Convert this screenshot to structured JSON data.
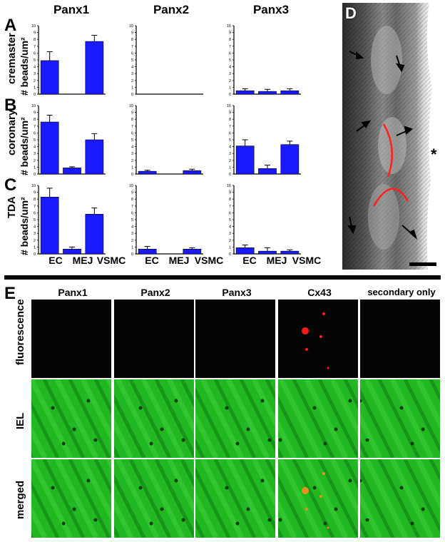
{
  "figure": {
    "panel_labels": {
      "A": "A",
      "B": "B",
      "C": "C",
      "D": "D",
      "E": "E"
    },
    "column_titles": [
      "Panx1",
      "Panx2",
      "Panx3"
    ],
    "row_labels": [
      "cremaster",
      "coronary",
      "TDA"
    ],
    "y_axis_label": "# beads/um²",
    "x_categories": [
      "EC",
      "MEJ",
      "VSMC"
    ],
    "scale_marker": "*"
  },
  "chart_data": [
    {
      "type": "bar",
      "row": "cremaster",
      "title": "Panx1",
      "categories": [
        "EC",
        "MEJ",
        "VSMC"
      ],
      "values": [
        4.9,
        0,
        7.7
      ],
      "errors": [
        1.3,
        0,
        0.9
      ],
      "ylim": [
        0,
        10
      ],
      "yticks": [
        0,
        1,
        2,
        3,
        4,
        5,
        6,
        7,
        8,
        9,
        10
      ],
      "color": "#1a1aff"
    },
    {
      "type": "bar",
      "row": "cremaster",
      "title": "Panx2",
      "categories": [
        "EC",
        "MEJ",
        "VSMC"
      ],
      "values": [
        0,
        0,
        0
      ],
      "errors": [
        0,
        0,
        0
      ],
      "ylim": [
        0,
        10
      ],
      "yticks": [
        0,
        1,
        2,
        3,
        4,
        5,
        6,
        7,
        8,
        9,
        10
      ],
      "color": "#1a1aff"
    },
    {
      "type": "bar",
      "row": "cremaster",
      "title": "Panx3",
      "categories": [
        "EC",
        "MEJ",
        "VSMC"
      ],
      "values": [
        0.5,
        0.4,
        0.5
      ],
      "errors": [
        0.3,
        0.3,
        0.3
      ],
      "ylim": [
        0,
        10
      ],
      "yticks": [
        0,
        1,
        2,
        3,
        4,
        5,
        6,
        7,
        8,
        9,
        10
      ],
      "color": "#1a1aff"
    },
    {
      "type": "bar",
      "row": "coronary",
      "title": "Panx1",
      "categories": [
        "EC",
        "MEJ",
        "VSMC"
      ],
      "values": [
        7.6,
        0.9,
        5.0
      ],
      "errors": [
        1.0,
        0.15,
        0.9
      ],
      "ylim": [
        0,
        10
      ],
      "yticks": [
        0,
        1,
        2,
        3,
        4,
        5,
        6,
        7,
        8,
        9,
        10
      ],
      "color": "#1a1aff"
    },
    {
      "type": "bar",
      "row": "coronary",
      "title": "Panx2",
      "categories": [
        "EC",
        "MEJ",
        "VSMC"
      ],
      "values": [
        0.4,
        0,
        0.5
      ],
      "errors": [
        0.15,
        0,
        0.2
      ],
      "ylim": [
        0,
        10
      ],
      "yticks": [
        0,
        1,
        2,
        3,
        4,
        5,
        6,
        7,
        8,
        9,
        10
      ],
      "color": "#1a1aff"
    },
    {
      "type": "bar",
      "row": "coronary",
      "title": "Panx3",
      "categories": [
        "EC",
        "MEJ",
        "VSMC"
      ],
      "values": [
        4.1,
        0.8,
        4.3
      ],
      "errors": [
        0.9,
        0.5,
        0.5
      ],
      "ylim": [
        0,
        10
      ],
      "yticks": [
        0,
        1,
        2,
        3,
        4,
        5,
        6,
        7,
        8,
        9,
        10
      ],
      "color": "#1a1aff"
    },
    {
      "type": "bar",
      "row": "TDA",
      "title": "Panx1",
      "categories": [
        "EC",
        "MEJ",
        "VSMC"
      ],
      "values": [
        8.3,
        0.7,
        5.8
      ],
      "errors": [
        1.3,
        0.3,
        0.9
      ],
      "ylim": [
        0,
        10
      ],
      "yticks": [
        0,
        1,
        2,
        3,
        4,
        5,
        6,
        7,
        8,
        9,
        10
      ],
      "color": "#1a1aff"
    },
    {
      "type": "bar",
      "row": "TDA",
      "title": "Panx2",
      "categories": [
        "EC",
        "MEJ",
        "VSMC"
      ],
      "values": [
        0.7,
        0,
        0.7
      ],
      "errors": [
        0.4,
        0,
        0.2
      ],
      "ylim": [
        0,
        10
      ],
      "yticks": [
        0,
        1,
        2,
        3,
        4,
        5,
        6,
        7,
        8,
        9,
        10
      ],
      "color": "#1a1aff"
    },
    {
      "type": "bar",
      "row": "TDA",
      "title": "Panx3",
      "categories": [
        "EC",
        "MEJ",
        "VSMC"
      ],
      "values": [
        0.9,
        0.4,
        0.4
      ],
      "errors": [
        0.4,
        0.5,
        0.2
      ],
      "ylim": [
        0,
        10
      ],
      "yticks": [
        0,
        1,
        2,
        3,
        4,
        5,
        6,
        7,
        8,
        9,
        10
      ],
      "color": "#1a1aff"
    }
  ],
  "panel_e": {
    "column_headers": [
      "Panx1",
      "Panx2",
      "Panx3",
      "Cx43",
      "secondary only"
    ],
    "row_labels": [
      "fluorescence",
      "IEL",
      "merged"
    ],
    "colors": {
      "fluorescence_bg": "#050505",
      "iel_green": "#22b822",
      "cx43_red": "#ff1a1a",
      "merged_orange": "#e8901a"
    }
  }
}
